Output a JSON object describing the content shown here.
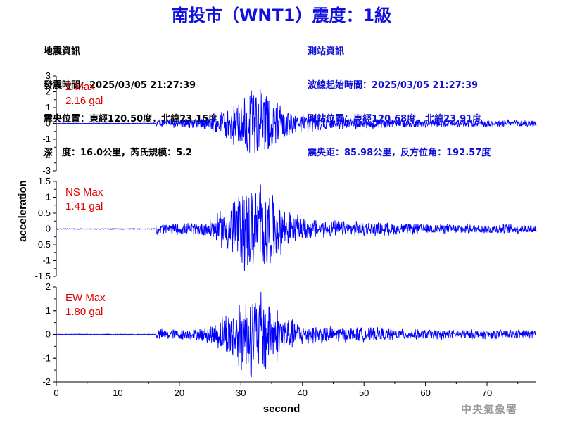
{
  "header": {
    "title": "南投市（WNT1）震度：1級"
  },
  "earthquake_info": {
    "heading": "地震資訊",
    "origin_time": "發震時間：2025/03/05 21:27:39",
    "epicenter": "震央位置：東經120.50度，北緯23.15度",
    "depth_magnitude": "深　度：16.0公里，芮氏規模：5.2"
  },
  "station_info": {
    "heading": "測站資訊",
    "wave_start": "波線起始時間：2025/03/05 21:27:39",
    "location": "測站位置：東經120.68度，北緯23.91度",
    "distance": "震央距：85.98公里，反方位角：192.57度"
  },
  "footer": {
    "agency": "中央氣象署"
  },
  "chart_data": {
    "type": "line",
    "xlabel": "second",
    "ylabel": "acceleration",
    "xlim": [
      0,
      78
    ],
    "x_ticks": [
      0,
      10,
      20,
      30,
      40,
      50,
      60,
      70
    ],
    "line_color": "#0000ff",
    "label_color": "#e00000",
    "panels": [
      {
        "name": "Z",
        "max_label": "Z Max",
        "max_value": "2.16 gal",
        "peak": 2.16,
        "ylim": [
          -3,
          3
        ],
        "y_ticks": [
          3,
          2,
          1,
          0,
          -1,
          -2,
          -3
        ],
        "y_tick_labels": [
          "3",
          "2",
          "1",
          "0",
          "-1",
          "-2",
          "-3"
        ]
      },
      {
        "name": "NS",
        "max_label": "NS Max",
        "max_value": "1.41 gal",
        "peak": 1.41,
        "ylim": [
          -1.5,
          1.5
        ],
        "y_ticks": [
          1.5,
          1,
          0.5,
          0,
          -0.5,
          -1,
          -1.5
        ],
        "y_tick_labels": [
          "1.5",
          "1",
          "0.5",
          "0",
          "-0.5",
          "-1",
          "-1.5"
        ]
      },
      {
        "name": "EW",
        "max_label": "EW Max",
        "max_value": "1.80 gal",
        "peak": 1.8,
        "ylim": [
          -2,
          2
        ],
        "y_ticks": [
          2,
          1,
          0,
          -1,
          -2
        ],
        "y_tick_labels": [
          "2",
          "1",
          "0",
          "-1",
          "-2"
        ]
      }
    ]
  }
}
